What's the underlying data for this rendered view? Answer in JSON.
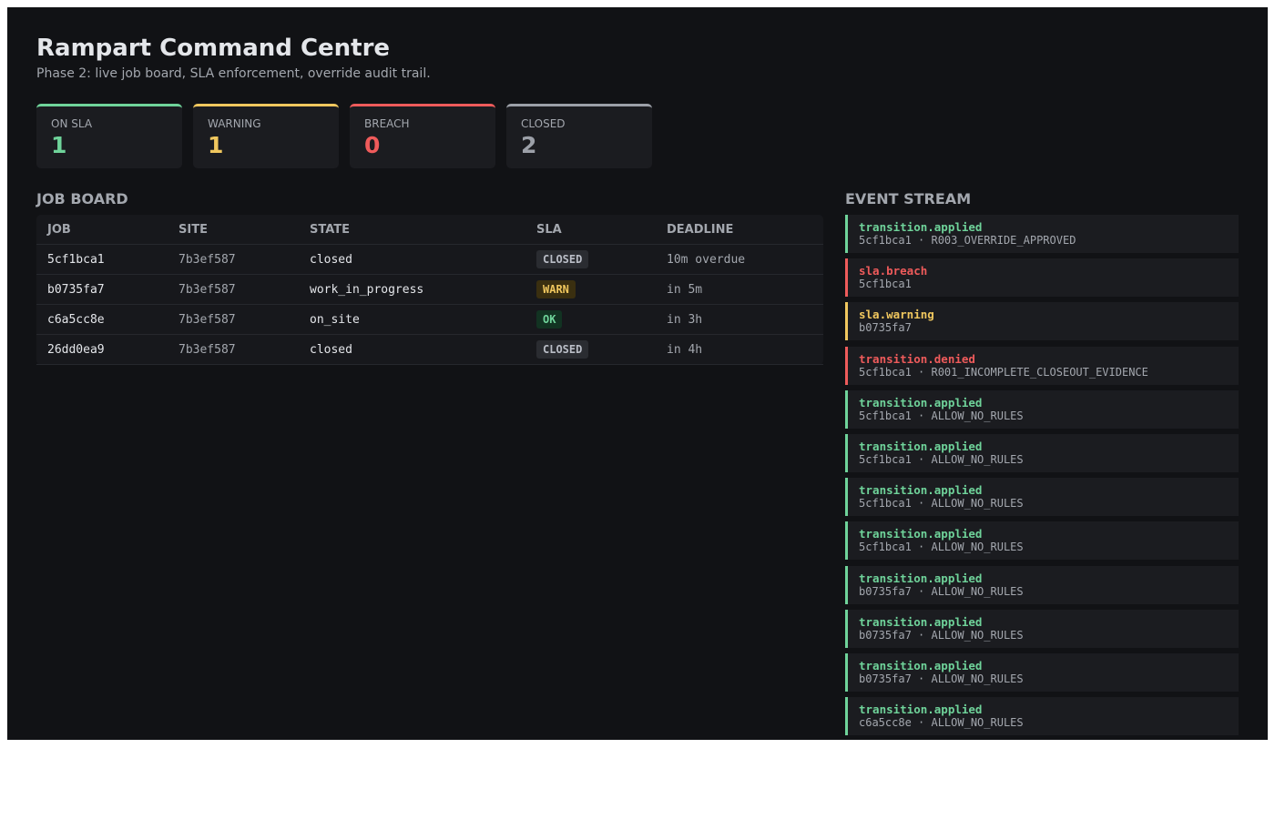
{
  "header": {
    "title": "Rampart Command Centre",
    "subtitle": "Phase 2: live job board, SLA enforcement, override audit trail."
  },
  "stats": [
    {
      "label": "ON SLA",
      "value": 1,
      "color": "#6fd39a"
    },
    {
      "label": "WARNING",
      "value": 1,
      "color": "#f0c75e"
    },
    {
      "label": "BREACH",
      "value": 0,
      "color": "#ef5b5b"
    },
    {
      "label": "CLOSED",
      "value": 2,
      "color": "#9ca0a8"
    }
  ],
  "job_board": {
    "title": "JOB BOARD",
    "columns": [
      "JOB",
      "SITE",
      "STATE",
      "SLA",
      "DEADLINE"
    ],
    "rows": [
      [
        "5cf1bca1",
        "7b3ef587",
        "closed",
        "CLOSED",
        "10m overdue"
      ],
      [
        "b0735fa7",
        "7b3ef587",
        "work_in_progress",
        "WARN",
        "in 5m"
      ],
      [
        "c6a5cc8e",
        "7b3ef587",
        "on_site",
        "OK",
        "in 3h"
      ],
      [
        "26dd0ea9",
        "7b3ef587",
        "closed",
        "CLOSED",
        "in 4h"
      ]
    ],
    "badge_colors": [
      {
        "fg": "#b9bdc6",
        "bg": "#2a2c31"
      },
      {
        "fg": "#f0c75e",
        "bg": "#3a2f10"
      },
      {
        "fg": "#6fd39a",
        "bg": "#123322"
      },
      {
        "fg": "#b9bdc6",
        "bg": "#2a2c31"
      }
    ]
  },
  "event_stream": {
    "title": "EVENT STREAM",
    "events": [
      {
        "type": "transition.applied",
        "detail": "5cf1bca1 · R003_OVERRIDE_APPROVED",
        "color": "#6fd39a"
      },
      {
        "type": "sla.breach",
        "detail": "5cf1bca1",
        "color": "#ef5b5b"
      },
      {
        "type": "sla.warning",
        "detail": "b0735fa7",
        "color": "#f0c75e"
      },
      {
        "type": "transition.denied",
        "detail": "5cf1bca1 · R001_INCOMPLETE_CLOSEOUT_EVIDENCE",
        "color": "#ef5b5b"
      },
      {
        "type": "transition.applied",
        "detail": "5cf1bca1 · ALLOW_NO_RULES",
        "color": "#6fd39a"
      },
      {
        "type": "transition.applied",
        "detail": "5cf1bca1 · ALLOW_NO_RULES",
        "color": "#6fd39a"
      },
      {
        "type": "transition.applied",
        "detail": "5cf1bca1 · ALLOW_NO_RULES",
        "color": "#6fd39a"
      },
      {
        "type": "transition.applied",
        "detail": "5cf1bca1 · ALLOW_NO_RULES",
        "color": "#6fd39a"
      },
      {
        "type": "transition.applied",
        "detail": "b0735fa7 · ALLOW_NO_RULES",
        "color": "#6fd39a"
      },
      {
        "type": "transition.applied",
        "detail": "b0735fa7 · ALLOW_NO_RULES",
        "color": "#6fd39a"
      },
      {
        "type": "transition.applied",
        "detail": "b0735fa7 · ALLOW_NO_RULES",
        "color": "#6fd39a"
      },
      {
        "type": "transition.applied",
        "detail": "c6a5cc8e · ALLOW_NO_RULES",
        "color": "#6fd39a"
      }
    ]
  }
}
